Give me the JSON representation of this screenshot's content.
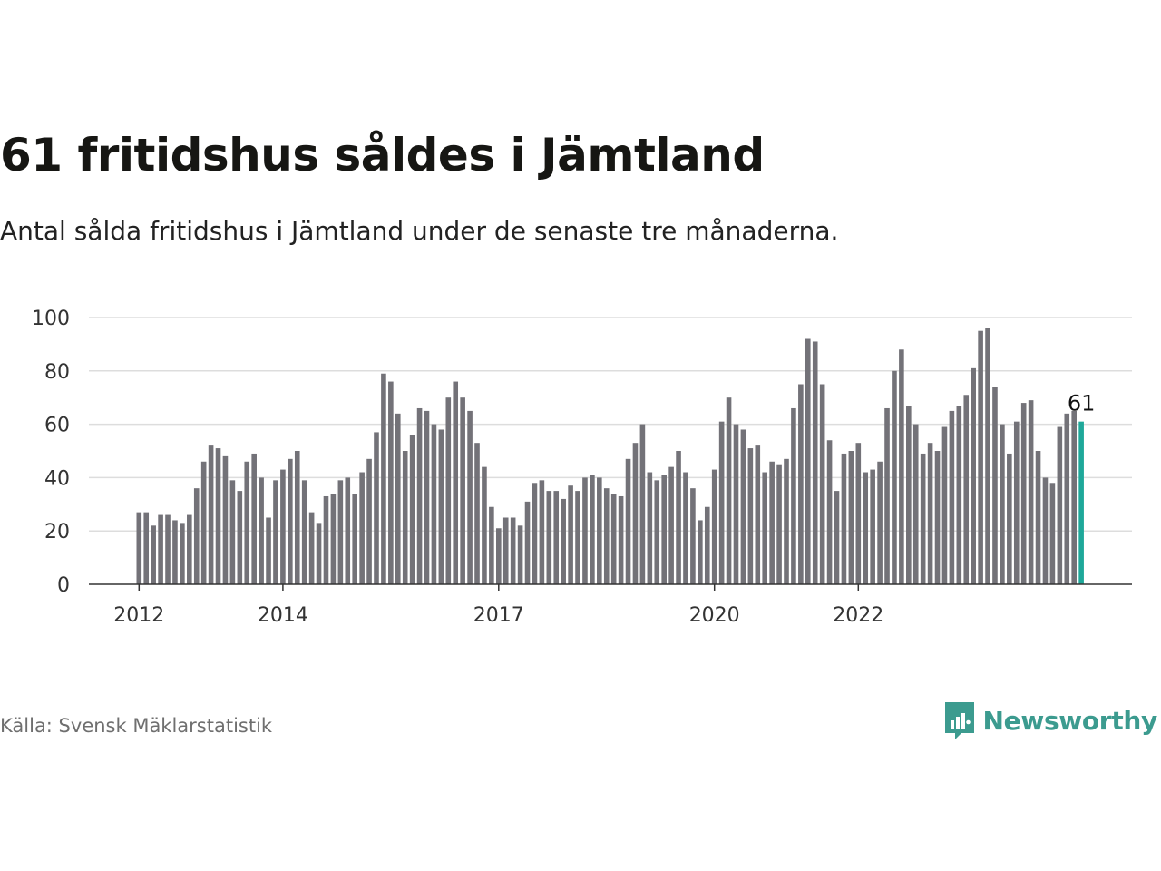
{
  "header": {
    "title": "61 fritidshus såldes i Jämtland",
    "subtitle": "Antal sålda fritidshus i Jämtland under de senaste tre månaderna."
  },
  "footer": {
    "source": "Källa: Svensk Mäklarstatistik",
    "brand": "Newsworthy",
    "brand_icon": "bar-chart-speech-bubble-icon"
  },
  "colors": {
    "bar": "#737278",
    "highlight": "#1fa89a",
    "grid": "#dddddd",
    "axis": "#333333",
    "brand": "#3c9b8f"
  },
  "chart_data": {
    "type": "bar",
    "title": "61 fritidshus såldes i Jämtland",
    "subtitle": "Antal sålda fritidshus i Jämtland under de senaste tre månaderna.",
    "xlabel": "",
    "ylabel": "",
    "ylim": [
      0,
      100
    ],
    "yticks": [
      0,
      20,
      40,
      60,
      80,
      100
    ],
    "xticks": [
      {
        "label": "2012",
        "index": 0
      },
      {
        "label": "2014",
        "index": 20
      },
      {
        "label": "2017",
        "index": 50
      },
      {
        "label": "2020",
        "index": 80
      },
      {
        "label": "2022",
        "index": 100
      }
    ],
    "grid": true,
    "legend": "none",
    "highlight_label": "61",
    "values": [
      27,
      27,
      22,
      26,
      26,
      24,
      23,
      26,
      36,
      46,
      52,
      51,
      48,
      39,
      35,
      46,
      49,
      40,
      25,
      39,
      43,
      47,
      50,
      39,
      27,
      23,
      33,
      34,
      39,
      40,
      34,
      42,
      47,
      57,
      79,
      76,
      64,
      50,
      56,
      66,
      65,
      60,
      58,
      70,
      76,
      70,
      65,
      53,
      44,
      29,
      21,
      25,
      25,
      22,
      31,
      38,
      39,
      35,
      35,
      32,
      37,
      35,
      40,
      41,
      40,
      36,
      34,
      33,
      47,
      53,
      60,
      42,
      39,
      41,
      44,
      50,
      42,
      36,
      24,
      29,
      43,
      61,
      70,
      60,
      58,
      51,
      52,
      42,
      46,
      45,
      47,
      66,
      75,
      92,
      91,
      75,
      54,
      35,
      49,
      50,
      53,
      42,
      43,
      46,
      66,
      80,
      88,
      67,
      60,
      49,
      53,
      50,
      59,
      65,
      67,
      71,
      81,
      95,
      96,
      74,
      60,
      49,
      61,
      68,
      69,
      50,
      40,
      38,
      59,
      64,
      65,
      61
    ]
  }
}
